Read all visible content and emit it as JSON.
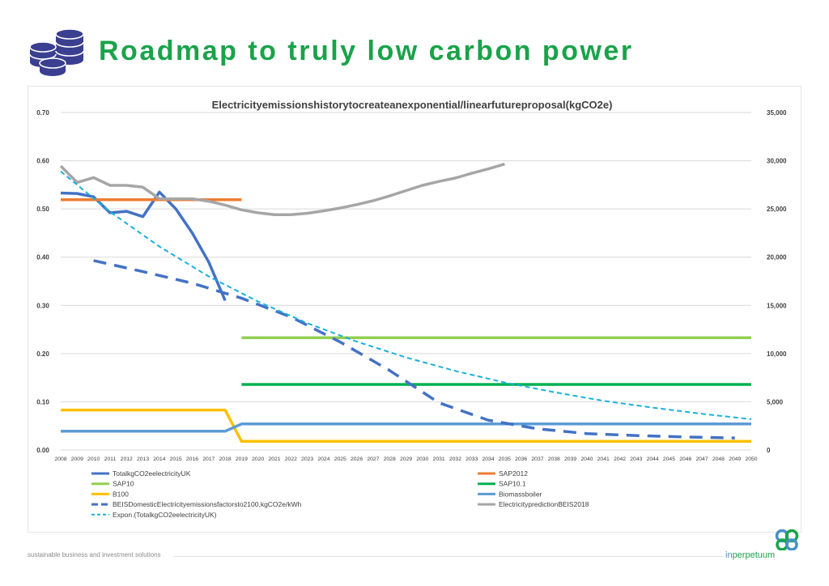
{
  "header": {
    "title": "Roadmap to truly low carbon power",
    "icon": "coin-stack-icon",
    "icon_color": "#3b3f8f"
  },
  "footer": {
    "tagline": "sustainable business and investment solutions",
    "brand_prefix": "in",
    "brand_accent": "perpetuum",
    "brand_logo": "interlocking-rings-icon"
  },
  "colors": {
    "title_green": "#1aa34a",
    "gridline": "#d9d9d9"
  },
  "chart_data": {
    "type": "line",
    "title": "Electricity\u0006emissions\u0006history\u0006to\u0006create\u0006an\u0006exponential/\u0006linear\u0006future\u0006proposal\u0006(kgCO2e)",
    "x": [
      2008,
      2009,
      2010,
      2011,
      2012,
      2013,
      2014,
      2015,
      2016,
      2017,
      2018,
      2019,
      2020,
      2021,
      2022,
      2023,
      2024,
      2025,
      2026,
      2027,
      2028,
      2029,
      2030,
      2031,
      2032,
      2033,
      2034,
      2035,
      2036,
      2037,
      2038,
      2039,
      2040,
      2041,
      2042,
      2043,
      2044,
      2045,
      2046,
      2047,
      2048,
      2049,
      2050
    ],
    "xlabel": "",
    "ylabel": "",
    "y_left": {
      "min": 0,
      "max": 0.7,
      "step": 0.1,
      "ticks": [
        "0.00",
        "0.10",
        "0.20",
        "0.30",
        "0.40",
        "0.50",
        "0.60",
        "0.70"
      ]
    },
    "y_right": {
      "min": 0,
      "max": 35000,
      "step": 5000,
      "ticks": [
        "0",
        "5,000",
        "10,000",
        "15,000",
        "20,000",
        "25,000",
        "30,000",
        "35,000"
      ]
    },
    "grid": true,
    "legend_position": "bottom",
    "series": [
      {
        "name": "Total\u0006kgCO2e\u0006electricity\u0006UK",
        "color": "#4472c4",
        "width": 3.5,
        "dash": "",
        "axis": "left",
        "x": [
          2008,
          2009,
          2010,
          2011,
          2012,
          2013,
          2014,
          2015,
          2016,
          2017,
          2018
        ],
        "y": [
          0.533,
          0.532,
          0.525,
          0.492,
          0.495,
          0.484,
          0.535,
          0.5,
          0.45,
          0.39,
          0.31
        ]
      },
      {
        "name": "SAP\u00062012",
        "color": "#ed7d31",
        "width": 3.5,
        "dash": "",
        "axis": "left",
        "x": [
          2008,
          2019
        ],
        "y": [
          0.519,
          0.519
        ]
      },
      {
        "name": "SAP\u000610",
        "color": "#92d050",
        "width": 3.5,
        "dash": "",
        "axis": "left",
        "x": [
          2019,
          2050
        ],
        "y": [
          0.233,
          0.233
        ]
      },
      {
        "name": "SAP\u000610.1",
        "color": "#00b050",
        "width": 3.5,
        "dash": "",
        "axis": "left",
        "x": [
          2019,
          2050
        ],
        "y": [
          0.136,
          0.136
        ]
      },
      {
        "name": "B100",
        "color": "#ffc000",
        "width": 3.5,
        "dash": "",
        "axis": "left",
        "x": [
          2008,
          2018,
          2019,
          2050
        ],
        "y": [
          0.083,
          0.083,
          0.018,
          0.018
        ]
      },
      {
        "name": "Biomass\u0006boiler",
        "color": "#5b9bd5",
        "width": 3.5,
        "dash": "",
        "axis": "left",
        "x": [
          2008,
          2018,
          2019,
          2050
        ],
        "y": [
          0.039,
          0.039,
          0.054,
          0.054
        ]
      },
      {
        "name": "BEIS\u0006Domestic\u0006Electricity\u0006emissions\u0006factors\u0006to\u00062100,\u0006kgCO2e/kWh",
        "color": "#4472c4",
        "width": 3.5,
        "dash": "16,10",
        "axis": "left",
        "x": [
          2010,
          2013,
          2016,
          2019,
          2022,
          2025,
          2028,
          2031,
          2034,
          2037,
          2040,
          2043,
          2046,
          2049
        ],
        "y": [
          0.393,
          0.37,
          0.346,
          0.315,
          0.276,
          0.224,
          0.165,
          0.098,
          0.062,
          0.044,
          0.034,
          0.03,
          0.027,
          0.025
        ]
      },
      {
        "name": "Electricity\u0006prediction\u0006BEIS\u00062018",
        "color": "#a6a6a6",
        "width": 3.5,
        "dash": "",
        "axis": "left",
        "x": [
          2008,
          2009,
          2010,
          2011,
          2012,
          2013,
          2014,
          2015,
          2016,
          2017,
          2018,
          2019,
          2020,
          2021,
          2022,
          2023,
          2024,
          2025,
          2026,
          2027,
          2028,
          2029,
          2030,
          2031,
          2032,
          2033,
          2034,
          2035
        ],
        "y": [
          0.589,
          0.555,
          0.565,
          0.549,
          0.549,
          0.545,
          0.521,
          0.521,
          0.521,
          0.516,
          0.508,
          0.498,
          0.492,
          0.488,
          0.488,
          0.491,
          0.496,
          0.502,
          0.509,
          0.517,
          0.527,
          0.538,
          0.549,
          0.557,
          0.564,
          0.574,
          0.583,
          0.593
        ]
      },
      {
        "name": "Expon.\u0006(Total\u0006kgCO2e\u0006electricity\u0006UK)",
        "color": "#1ab0d8",
        "width": 2,
        "dash": "6,4",
        "axis": "left",
        "x": [
          2008,
          2011,
          2014,
          2017,
          2020,
          2023,
          2026,
          2029,
          2032,
          2035,
          2038,
          2041,
          2044,
          2047,
          2050
        ],
        "y": [
          0.578,
          0.494,
          0.422,
          0.36,
          0.308,
          0.263,
          0.225,
          0.192,
          0.164,
          0.14,
          0.12,
          0.102,
          0.088,
          0.075,
          0.064
        ]
      }
    ]
  }
}
